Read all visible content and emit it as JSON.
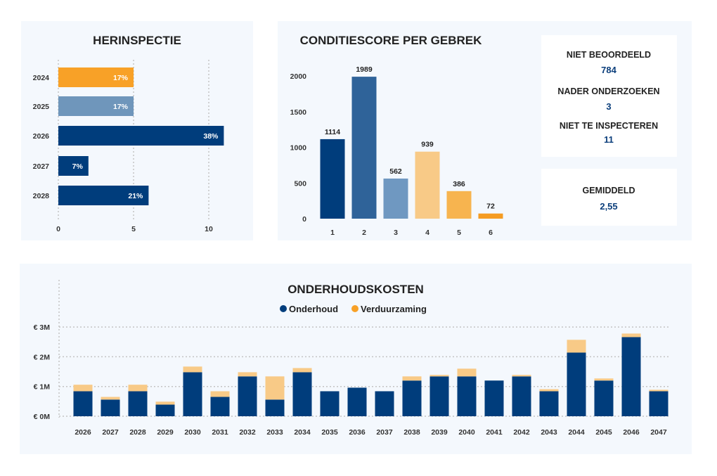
{
  "colors": {
    "navy": "#003d7c",
    "panel": "#f4f8fd",
    "orange": "#f8a127",
    "lightblue": "#6f96bb",
    "lightorange": "#f8ca87"
  },
  "stats": {
    "niet_beoordeeld": {
      "label": "NIET BEOORDEELD",
      "value": "784"
    },
    "nader_onderzoeken": {
      "label": "NADER ONDERZOEKEN",
      "value": "3"
    },
    "niet_te_inspecteren": {
      "label": "NIET TE INSPECTEREN",
      "value": "11"
    },
    "gemiddeld": {
      "label": "GEMIDDELD",
      "value": "2,55"
    }
  },
  "chart_data": [
    {
      "type": "bar",
      "orientation": "horizontal",
      "title": "HERINSPECTIE",
      "categories": [
        "2024",
        "2025",
        "2026",
        "2027",
        "2028"
      ],
      "values": [
        5,
        5,
        11,
        2,
        6
      ],
      "labels": [
        "17%",
        "17%",
        "38%",
        "7%",
        "21%"
      ],
      "colors": [
        "#f8a127",
        "#6f96bb",
        "#003d7c",
        "#003d7c",
        "#003d7c"
      ],
      "xlim": [
        0,
        12
      ],
      "xticks": [
        "0",
        "5",
        "10"
      ],
      "grid": true
    },
    {
      "type": "bar",
      "title": "CONDITIESCORE PER GEBREK",
      "categories": [
        "1",
        "2",
        "3",
        "4",
        "5",
        "6"
      ],
      "values": [
        1114,
        1989,
        562,
        939,
        386,
        72
      ],
      "colors": [
        "#003d7c",
        "#2f6399",
        "#6f98c1",
        "#f8ca87",
        "#f7b44f",
        "#f59c22"
      ],
      "ylim": [
        0,
        2000
      ],
      "yticks": [
        "0",
        "500",
        "1000",
        "1500",
        "2000"
      ],
      "grid": false
    },
    {
      "type": "bar",
      "stacked": true,
      "title": "ONDERHOUDSKOSTEN",
      "categories": [
        "2026",
        "2027",
        "2028",
        "2029",
        "2030",
        "2031",
        "2032",
        "2033",
        "2034",
        "2035",
        "2036",
        "2037",
        "2038",
        "2039",
        "2040",
        "2041",
        "2042",
        "2043",
        "2044",
        "2045",
        "2046",
        "2047"
      ],
      "series": [
        {
          "name": "Onderhoud",
          "color": "#003d7c",
          "values": [
            0.84,
            0.56,
            0.84,
            0.39,
            1.48,
            0.65,
            1.34,
            0.56,
            1.48,
            0.84,
            0.96,
            0.84,
            1.2,
            1.34,
            1.34,
            1.2,
            1.34,
            0.84,
            2.14,
            1.2,
            2.66,
            0.84
          ]
        },
        {
          "name": "Verduurzaming",
          "color": "#f8ca87",
          "values": [
            0.22,
            0.09,
            0.22,
            0.1,
            0.19,
            0.19,
            0.14,
            0.78,
            0.14,
            0,
            0,
            0,
            0.14,
            0.05,
            0.26,
            0,
            0.05,
            0.07,
            0.43,
            0.07,
            0.12,
            0.05
          ]
        }
      ],
      "unit": "€ M",
      "ylim": [
        0,
        3
      ],
      "yticks": [
        "€ 0M",
        "€ 1M",
        "€ 2M",
        "€ 3M"
      ],
      "legend": "top-center",
      "grid": true
    }
  ]
}
